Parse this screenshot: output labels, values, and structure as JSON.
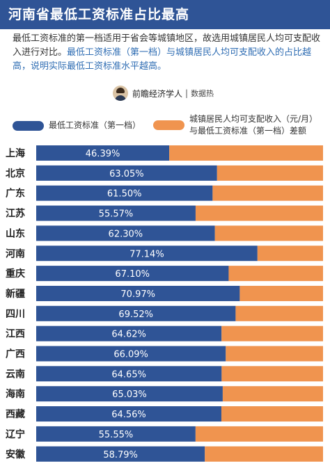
{
  "header": {
    "title": "河南省最低工资标准占比最高"
  },
  "description": {
    "plain": "最低工资标准的第一档适用于省会等城镇地区，故选用城镇居民人均可支配收入进行对比。",
    "highlight": "最低工资标准（第一档）与城镇居民人均可支配收入的占比越高，说明实际最低工资标准水平越高。"
  },
  "source": {
    "author": "前瞻经济学人",
    "separator": "|",
    "sub": "数据热"
  },
  "legend": {
    "series1": "最低工资标准（第一档）",
    "series2_line1": "城镇居民人均可支配收入（元/月）",
    "series2_line2": "与最低工资标准（第一档）差额"
  },
  "colors": {
    "title_bg": "#2f5496",
    "series1": "#2f5496",
    "series2": "#f0944f"
  },
  "chart_data": {
    "type": "bar",
    "orientation": "horizontal",
    "stacked": true,
    "percent_scale": true,
    "categories": [
      "上海",
      "北京",
      "广东",
      "江苏",
      "山东",
      "河南",
      "重庆",
      "新疆",
      "四川",
      "江西",
      "广西",
      "云南",
      "海南",
      "西藏",
      "辽宁",
      "安徽"
    ],
    "series": [
      {
        "name": "最低工资标准（第一档）",
        "values": [
          46.39,
          63.05,
          61.5,
          55.57,
          62.3,
          77.14,
          67.1,
          70.97,
          69.52,
          64.62,
          66.09,
          64.65,
          65.03,
          64.56,
          55.55,
          58.79
        ]
      },
      {
        "name": "城镇居民人均可支配收入（元/月）与最低工资标准（第一档）差额",
        "values": [
          53.61,
          36.95,
          38.5,
          44.43,
          37.7,
          22.86,
          32.9,
          29.03,
          30.48,
          35.38,
          33.91,
          35.35,
          34.97,
          35.44,
          44.45,
          41.21
        ]
      }
    ],
    "data_labels": [
      "46.39%",
      "63.05%",
      "61.50%",
      "55.57%",
      "62.30%",
      "77.14%",
      "67.10%",
      "70.97%",
      "69.52%",
      "64.62%",
      "66.09%",
      "64.65%",
      "65.03%",
      "64.56%",
      "55.55%",
      "58.79%"
    ],
    "xlim": [
      0,
      100
    ]
  }
}
